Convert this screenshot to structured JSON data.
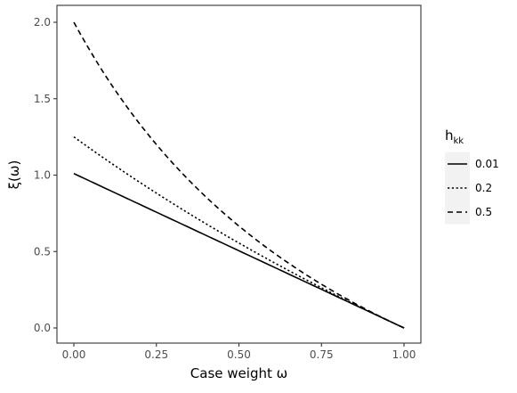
{
  "chart_data": {
    "type": "line",
    "xlabel": "Case weight ω",
    "ylabel": "ξ(ω)",
    "xlim": [
      0,
      1
    ],
    "ylim": [
      0,
      2
    ],
    "x_ticks": [
      "0.00",
      "0.25",
      "0.50",
      "0.75",
      "1.00"
    ],
    "y_ticks": [
      "0.0",
      "0.5",
      "1.0",
      "1.5",
      "2.0"
    ],
    "grid": false,
    "legend": {
      "title_main": "h",
      "title_sub": "kk",
      "placement": "right"
    },
    "series": [
      {
        "name": "0.01",
        "dash": "solid",
        "x": [
          0,
          0.1,
          0.2,
          0.3,
          0.4,
          0.5,
          0.6,
          0.7,
          0.8,
          0.9,
          1.0
        ],
        "y": [
          1.0101,
          0.9091,
          0.8081,
          0.7071,
          0.6061,
          0.5051,
          0.404,
          0.303,
          0.202,
          0.101,
          0.0
        ]
      },
      {
        "name": "0.2",
        "dash": "dotted",
        "x": [
          0,
          0.1,
          0.2,
          0.3,
          0.4,
          0.5,
          0.6,
          0.7,
          0.8,
          0.9,
          1.0
        ],
        "y": [
          1.25,
          1.0976,
          0.9524,
          0.814,
          0.6818,
          0.5556,
          0.4348,
          0.3191,
          0.2083,
          0.102,
          0.0
        ]
      },
      {
        "name": "0.5",
        "dash": "dashed",
        "x": [
          0,
          0.1,
          0.2,
          0.3,
          0.4,
          0.5,
          0.6,
          0.7,
          0.8,
          0.9,
          1.0
        ],
        "y": [
          2.0,
          1.6364,
          1.3333,
          1.0769,
          0.8571,
          0.6667,
          0.5,
          0.3529,
          0.2222,
          0.1053,
          0.0
        ]
      }
    ]
  }
}
